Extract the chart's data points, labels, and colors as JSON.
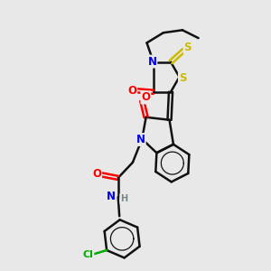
{
  "background_color": "#e8e8e8",
  "atom_colors": {
    "N": "#0000ee",
    "O": "#ff0000",
    "S": "#ccbb00",
    "Cl": "#00aa00",
    "C": "#111111",
    "H": "#778888"
  },
  "bond_color": "#111111",
  "bond_width": 1.8,
  "font_size_atoms": 8.5,
  "figsize": [
    3.0,
    3.0
  ],
  "dpi": 100
}
